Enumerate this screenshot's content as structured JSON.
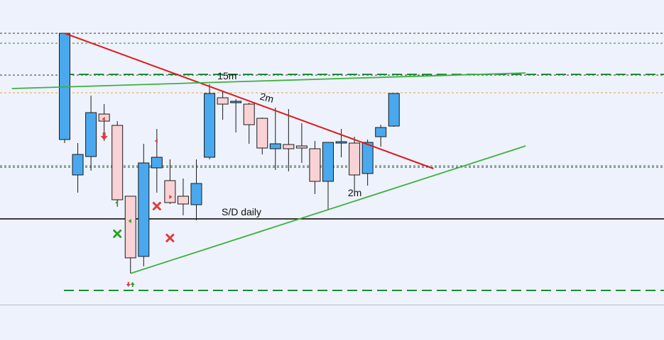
{
  "chart_data": {
    "type": "candlestick",
    "title": "",
    "xlabel": "",
    "ylabel": "",
    "ylim": [
      0,
      100
    ],
    "grid": false,
    "colors": {
      "bull_fill": "#4aa8ee",
      "bear_fill": "#f8d2d4",
      "candle_border": "#1a1a1a",
      "resistance_line": "#dd1a1a",
      "trend_line": "#3db13d",
      "sd_line": "#000000",
      "level_dashed": "#1f8a3a",
      "level_dotted": "#333333",
      "level_orange": "#e8a040",
      "background": "#eef2fc"
    },
    "candles": [
      {
        "o": 56.25,
        "h": 93.75,
        "c": 93.75,
        "l": 55.0
      },
      {
        "o": 43.75,
        "h": 55.0,
        "c": 51.0,
        "l": 37.5
      },
      {
        "o": 50.25,
        "h": 71.75,
        "c": 65.75,
        "l": 45.25
      },
      {
        "o": 65.25,
        "h": 68.75,
        "c": 62.75,
        "l": 55.75
      },
      {
        "o": 61.25,
        "h": 62.75,
        "c": 35.0,
        "l": 32.5
      },
      {
        "o": 36.25,
        "h": 36.25,
        "c": 14.5,
        "l": 9.0
      },
      {
        "o": 15.0,
        "h": 54.75,
        "c": 48.0,
        "l": 11.5
      },
      {
        "o": 46.25,
        "h": 60.0,
        "c": 50.0,
        "l": 37.5
      },
      {
        "o": 41.75,
        "h": 49.25,
        "c": 34.0,
        "l": 33.5
      },
      {
        "o": 36.25,
        "h": 42.5,
        "c": 33.5,
        "l": 29.5
      },
      {
        "o": 33.25,
        "h": 49.25,
        "c": 40.75,
        "l": 27.75
      },
      {
        "o": 50.0,
        "h": 75.75,
        "c": 72.5,
        "l": 49.25
      },
      {
        "o": 71.0,
        "h": 73.25,
        "c": 68.75,
        "l": 63.25
      },
      {
        "o": 69.75,
        "h": 70.5,
        "c": 69.75,
        "l": 58.75
      },
      {
        "o": 68.75,
        "h": 69.25,
        "c": 61.5,
        "l": 54.75
      },
      {
        "o": 63.75,
        "h": 64.0,
        "c": 53.25,
        "l": 51.0
      },
      {
        "o": 53.0,
        "h": 67.5,
        "c": 54.75,
        "l": 45.5
      },
      {
        "o": 54.5,
        "h": 67.0,
        "c": 53.0,
        "l": 45.0
      },
      {
        "o": 54.0,
        "h": 62.0,
        "c": 53.25,
        "l": 48.0
      },
      {
        "o": 53.0,
        "h": 55.75,
        "c": 41.5,
        "l": 37.0
      },
      {
        "o": 41.5,
        "h": 55.25,
        "c": 55.25,
        "l": 31.25
      },
      {
        "o": 55.0,
        "h": 60.0,
        "c": 55.5,
        "l": 50.0
      },
      {
        "o": 55.0,
        "h": 57.25,
        "c": 43.75,
        "l": 37.75
      },
      {
        "o": 44.25,
        "h": 56.25,
        "c": 55.25,
        "l": 40.0
      },
      {
        "o": 57.25,
        "h": 61.5,
        "c": 60.5,
        "l": 53.75
      },
      {
        "o": 61.0,
        "h": 72.5,
        "c": 72.5,
        "l": 60.75
      }
    ],
    "levels": [
      {
        "y": 93.75,
        "style": "dotted"
      },
      {
        "y": 90.25,
        "style": "dotted-green"
      },
      {
        "y": 79.0,
        "style": "dotted"
      },
      {
        "y": 79.25,
        "style": "dashed-green"
      },
      {
        "y": 72.75,
        "style": "dotted-orange"
      },
      {
        "y": 47.0,
        "style": "dotted-green"
      },
      {
        "y": 46.5,
        "style": "dotted"
      },
      {
        "y": 28.25,
        "style": "solid",
        "label": "S/D daily"
      },
      {
        "y": 3.0,
        "style": "dashed-green"
      }
    ],
    "trend_lines": [
      {
        "from": [
          0,
          93.75
        ],
        "to": [
          28,
          46.0
        ],
        "color": "red",
        "label": "2m"
      },
      {
        "from": [
          -4,
          74.25
        ],
        "to": [
          35,
          79.75
        ],
        "color": "green",
        "label": "15m"
      },
      {
        "from": [
          5,
          9.0
        ],
        "to": [
          35,
          54.0
        ],
        "color": "green",
        "label": "2m"
      }
    ],
    "markers": [
      {
        "candle": 3,
        "y": 57.0,
        "type": "arrow-down",
        "color": "red"
      },
      {
        "candle": 3,
        "y": 63.5,
        "type": "tick-left",
        "color": "red"
      },
      {
        "candle": 4,
        "y": 34.0,
        "type": "tick-left",
        "color": "green"
      },
      {
        "candle": 4,
        "y": 23.0,
        "type": "cross",
        "color": "green"
      },
      {
        "candle": 5,
        "y": 27.5,
        "type": "tick-left",
        "color": "green"
      },
      {
        "candle": 5,
        "y": 5.0,
        "type": "arrow-down-small",
        "color": "red"
      },
      {
        "candle": 5,
        "y": 5.25,
        "type": "arrow-up-small",
        "color": "green"
      },
      {
        "candle": 7,
        "y": 55.75,
        "type": "tick-left",
        "color": "red"
      },
      {
        "candle": 7,
        "y": 32.75,
        "type": "cross",
        "color": "red"
      },
      {
        "candle": 8,
        "y": 21.5,
        "type": "cross",
        "color": "red"
      },
      {
        "candle": 8,
        "y": 36.0,
        "type": "tick-right",
        "color": "red"
      }
    ]
  }
}
